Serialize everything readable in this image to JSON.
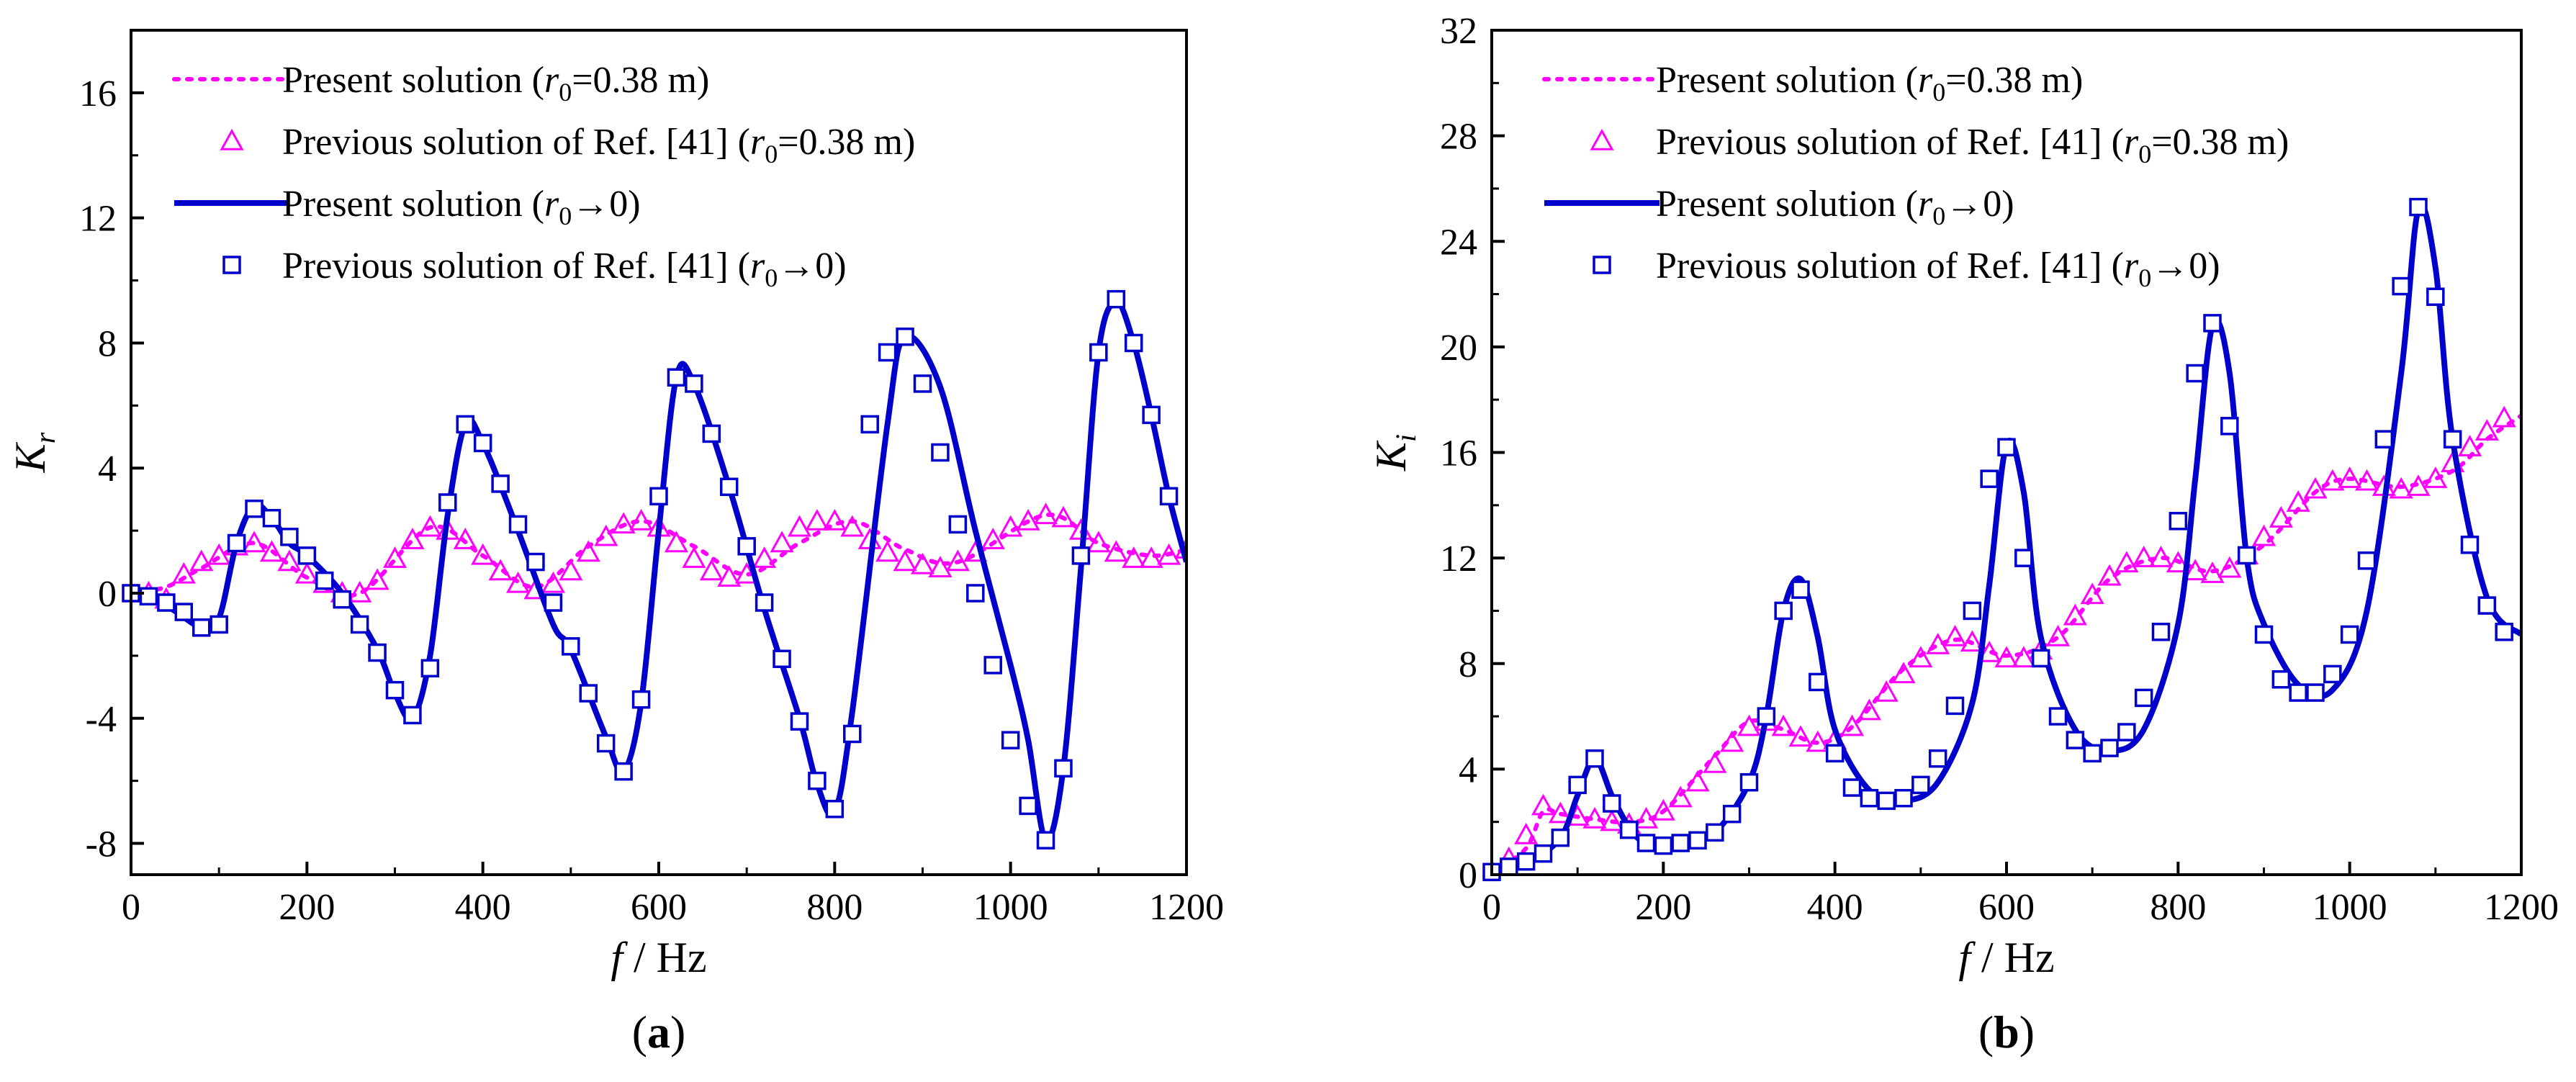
{
  "colors": {
    "present_038": "#ff00ff",
    "prev_038": "#ff00ff",
    "present_0": "#0000cc",
    "prev_0": "#0000cc"
  },
  "chart_data": [
    {
      "type": "line",
      "caption_letter": "a",
      "title": "",
      "xlabel": "f / Hz",
      "xlabel_var": "f",
      "xlabel_unit": " / Hz",
      "ylabel": "K_r",
      "ylabel_main": "K",
      "ylabel_sub": "r",
      "xlim": [
        0,
        1200
      ],
      "ylim": [
        -9,
        18
      ],
      "xticks": [
        0,
        200,
        400,
        600,
        800,
        1000,
        1200
      ],
      "yticks": [
        -8,
        -4,
        0,
        4,
        8,
        12,
        16
      ],
      "legend": [
        {
          "text": "Present solution (",
          "r": "r",
          "sub": "0",
          "rest": "=0.38 m)"
        },
        {
          "text": "Previous solution of Ref. [41]  (",
          "r": "r",
          "sub": "0",
          "rest": "=0.38 m)"
        },
        {
          "text": "Present solution (",
          "r": "r",
          "sub": "0",
          "rest": "→0)"
        },
        {
          "text": "Previous solution of Ref. [41]   (",
          "r": "r",
          "sub": "0",
          "rest": "→0)"
        }
      ],
      "series": [
        {
          "name": "Present solution (r0=0.38 m)",
          "style": "dotted",
          "color_key": "present_038",
          "x": [
            0,
            40,
            80,
            140,
            200,
            260,
            340,
            400,
            460,
            520,
            580,
            640,
            700,
            760,
            820,
            880,
            940,
            1040,
            1100,
            1160,
            1200
          ],
          "y": [
            0,
            0.2,
            0.8,
            1.6,
            0.5,
            0.0,
            2.1,
            1.2,
            0.2,
            1.5,
            2.3,
            1.5,
            0.6,
            1.6,
            2.3,
            1.4,
            1.0,
            2.5,
            1.6,
            1.2,
            1.4
          ]
        },
        {
          "name": "Previous solution of Ref. [41] (r0=0.38 m)",
          "style": "triangle",
          "color_key": "prev_038",
          "x": [
            0,
            20,
            40,
            60,
            80,
            100,
            120,
            140,
            160,
            180,
            200,
            220,
            240,
            260,
            280,
            300,
            320,
            340,
            360,
            380,
            400,
            420,
            440,
            460,
            480,
            500,
            520,
            540,
            560,
            580,
            600,
            620,
            640,
            660,
            680,
            700,
            720,
            740,
            760,
            780,
            800,
            820,
            840,
            860,
            880,
            900,
            920,
            940,
            960,
            980,
            1000,
            1020,
            1040,
            1060,
            1080,
            1100,
            1120,
            1140,
            1160,
            1180,
            1200
          ],
          "y": [
            0.0,
            0.0,
            -0.2,
            0.6,
            1.0,
            1.2,
            1.5,
            1.6,
            1.3,
            1.0,
            0.6,
            0.3,
            0.0,
            0.0,
            0.4,
            1.1,
            1.7,
            2.1,
            2.0,
            1.7,
            1.2,
            0.7,
            0.3,
            0.1,
            0.3,
            0.7,
            1.3,
            1.8,
            2.2,
            2.3,
            2.1,
            1.6,
            1.1,
            0.7,
            0.5,
            0.6,
            1.1,
            1.6,
            2.1,
            2.3,
            2.3,
            2.1,
            1.7,
            1.3,
            1.0,
            0.9,
            0.8,
            1.0,
            1.3,
            1.7,
            2.1,
            2.3,
            2.5,
            2.4,
            2.0,
            1.6,
            1.3,
            1.1,
            1.1,
            1.2,
            1.4
          ]
        },
        {
          "name": "Present solution (r0→0)",
          "style": "solid",
          "color_key": "present_0",
          "x": [
            0,
            40,
            80,
            100,
            120,
            140,
            160,
            180,
            200,
            240,
            280,
            300,
            320,
            340,
            360,
            380,
            400,
            440,
            480,
            500,
            540,
            560,
            580,
            600,
            620,
            640,
            680,
            720,
            760,
            780,
            800,
            820,
            860,
            880,
            920,
            960,
            1000,
            1020,
            1040,
            1060,
            1080,
            1100,
            1120,
            1140,
            1160,
            1180,
            1200
          ],
          "y": [
            0,
            -0.4,
            -1.1,
            -0.8,
            1.6,
            2.8,
            2.4,
            1.6,
            1.2,
            0.0,
            -1.8,
            -3.2,
            -4.0,
            -2.0,
            2.5,
            5.4,
            4.8,
            2.0,
            -1.0,
            -1.8,
            -4.6,
            -5.7,
            -3.5,
            2.0,
            6.9,
            6.7,
            3.4,
            -0.5,
            -4.0,
            -6.1,
            -7.0,
            -3.8,
            5.4,
            8.2,
            6.6,
            2.0,
            -2.3,
            -4.7,
            -7.9,
            -5.6,
            0.8,
            7.7,
            9.3,
            8.0,
            5.7,
            3.1,
            1.0
          ]
        },
        {
          "name": "Previous solution of Ref. [41] (r0→0)",
          "style": "square",
          "color_key": "prev_0",
          "x": [
            0,
            20,
            40,
            60,
            80,
            100,
            120,
            140,
            160,
            180,
            200,
            220,
            240,
            260,
            280,
            300,
            320,
            340,
            360,
            380,
            400,
            420,
            440,
            460,
            480,
            500,
            520,
            540,
            560,
            580,
            600,
            620,
            640,
            660,
            680,
            700,
            720,
            740,
            760,
            780,
            800,
            820,
            840,
            860,
            880,
            900,
            920,
            940,
            960,
            980,
            1000,
            1020,
            1040,
            1060,
            1080,
            1100,
            1120,
            1140,
            1160,
            1180
          ],
          "y": [
            0.0,
            -0.1,
            -0.3,
            -0.6,
            -1.1,
            -1.0,
            1.6,
            2.7,
            2.4,
            1.8,
            1.2,
            0.4,
            -0.2,
            -1.0,
            -1.9,
            -3.1,
            -3.9,
            -2.4,
            2.9,
            5.4,
            4.8,
            3.5,
            2.2,
            1.0,
            -0.3,
            -1.7,
            -3.2,
            -4.8,
            -5.7,
            -3.4,
            3.1,
            6.9,
            6.7,
            5.1,
            3.4,
            1.5,
            -0.3,
            -2.1,
            -4.1,
            -6.0,
            -6.9,
            -4.5,
            5.4,
            7.7,
            8.2,
            6.7,
            4.5,
            2.2,
            0.0,
            -2.3,
            -4.7,
            -6.8,
            -7.9,
            -5.6,
            1.2,
            7.7,
            9.4,
            8.0,
            5.7,
            3.1
          ]
        }
      ]
    },
    {
      "type": "line",
      "caption_letter": "b",
      "title": "",
      "xlabel": "f / Hz",
      "xlabel_var": "f",
      "xlabel_unit": " / Hz",
      "ylabel": "K_i",
      "ylabel_main": "K",
      "ylabel_sub": "i",
      "xlim": [
        0,
        1200
      ],
      "ylim": [
        0,
        32
      ],
      "xticks": [
        0,
        200,
        400,
        600,
        800,
        1000,
        1200
      ],
      "yticks": [
        0,
        4,
        8,
        12,
        16,
        20,
        24,
        28,
        32
      ],
      "legend": [
        {
          "text": "Present solution (",
          "r": "r",
          "sub": "0",
          "rest": "=0.38 m)"
        },
        {
          "text": "Previous solution of Ref. [41] (",
          "r": "r",
          "sub": "0",
          "rest": "=0.38 m)"
        },
        {
          "text": "Present solution (",
          "r": "r",
          "sub": "0",
          "rest": "→0)"
        },
        {
          "text": "Previous solution of Ref. [41] (",
          "r": "r",
          "sub": "0",
          "rest": "→0)"
        }
      ],
      "series": [
        {
          "name": "Present solution (r0=0.38 m)",
          "style": "dotted",
          "color_key": "present_038",
          "x": [
            0,
            40,
            60,
            80,
            120,
            160,
            200,
            260,
            300,
            340,
            380,
            420,
            480,
            540,
            600,
            660,
            720,
            780,
            840,
            900,
            960,
            1000,
            1060,
            1120,
            1160,
            1200
          ],
          "y": [
            0,
            1.0,
            2.4,
            2.3,
            2.1,
            2.0,
            2.4,
            4.5,
            5.8,
            5.5,
            5.0,
            5.6,
            7.8,
            8.9,
            8.3,
            9.0,
            11.2,
            12.0,
            11.5,
            12.5,
            14.5,
            15.0,
            14.7,
            15.3,
            16.5,
            17.4
          ]
        },
        {
          "name": "Previous solution of Ref. [41] (r0=0.38 m)",
          "style": "triangle",
          "color_key": "prev_038",
          "x": [
            0,
            20,
            40,
            60,
            80,
            100,
            120,
            140,
            160,
            180,
            200,
            220,
            240,
            260,
            280,
            300,
            320,
            340,
            360,
            380,
            400,
            420,
            440,
            460,
            480,
            500,
            520,
            540,
            560,
            580,
            600,
            620,
            640,
            660,
            680,
            700,
            720,
            740,
            760,
            780,
            800,
            820,
            840,
            860,
            880,
            900,
            920,
            940,
            960,
            980,
            1000,
            1020,
            1040,
            1060,
            1080,
            1100,
            1120,
            1140,
            1160,
            1180
          ],
          "y": [
            0.1,
            0.6,
            1.5,
            2.6,
            2.3,
            2.2,
            2.1,
            2.0,
            1.9,
            2.1,
            2.4,
            2.9,
            3.5,
            4.2,
            5.0,
            5.6,
            5.8,
            5.6,
            5.2,
            5.0,
            5.1,
            5.6,
            6.2,
            6.9,
            7.6,
            8.2,
            8.7,
            9.0,
            8.8,
            8.4,
            8.2,
            8.2,
            8.5,
            9.0,
            9.8,
            10.6,
            11.3,
            11.8,
            12.0,
            12.0,
            11.8,
            11.5,
            11.4,
            11.6,
            12.1,
            12.8,
            13.5,
            14.1,
            14.6,
            14.9,
            15.0,
            14.9,
            14.7,
            14.6,
            14.7,
            15.0,
            15.6,
            16.2,
            16.8,
            17.3
          ]
        },
        {
          "name": "Present solution (r0→0)",
          "style": "solid",
          "color_key": "present_0",
          "x": [
            0,
            40,
            80,
            100,
            120,
            140,
            160,
            180,
            220,
            260,
            300,
            320,
            340,
            360,
            380,
            400,
            440,
            480,
            520,
            560,
            580,
            600,
            620,
            640,
            680,
            720,
            760,
            800,
            820,
            840,
            860,
            880,
            900,
            940,
            980,
            1020,
            1060,
            1080,
            1100,
            1120,
            1160,
            1200
          ],
          "y": [
            0.2,
            0.4,
            1.4,
            3.0,
            4.4,
            3.0,
            1.8,
            1.2,
            1.1,
            1.6,
            3.5,
            6.0,
            10.0,
            11.2,
            9.0,
            5.5,
            3.2,
            2.8,
            3.5,
            6.5,
            11.0,
            16.3,
            14.5,
            9.0,
            5.5,
            4.7,
            5.5,
            9.5,
            15.0,
            20.8,
            19.0,
            12.0,
            9.5,
            7.2,
            7.0,
            10.0,
            19.0,
            25.2,
            23.0,
            16.5,
            10.5,
            9.1
          ]
        },
        {
          "name": "Previous solution of Ref. [41] (r0→0)",
          "style": "square",
          "color_key": "prev_0",
          "x": [
            0,
            20,
            40,
            60,
            80,
            100,
            120,
            140,
            160,
            180,
            200,
            220,
            240,
            260,
            280,
            300,
            320,
            340,
            360,
            380,
            400,
            420,
            440,
            460,
            480,
            500,
            520,
            540,
            560,
            580,
            600,
            620,
            640,
            660,
            680,
            700,
            720,
            740,
            760,
            780,
            800,
            820,
            840,
            860,
            880,
            900,
            920,
            940,
            960,
            980,
            1000,
            1020,
            1040,
            1060,
            1080,
            1100,
            1120,
            1140,
            1160,
            1180
          ],
          "y": [
            0.1,
            0.3,
            0.5,
            0.8,
            1.4,
            3.4,
            4.4,
            2.7,
            1.7,
            1.2,
            1.1,
            1.2,
            1.3,
            1.6,
            2.3,
            3.5,
            6.0,
            10.0,
            10.8,
            7.3,
            4.6,
            3.3,
            2.9,
            2.8,
            2.9,
            3.4,
            4.4,
            6.4,
            10.0,
            15.0,
            16.2,
            12.0,
            8.2,
            6.0,
            5.1,
            4.6,
            4.8,
            5.4,
            6.7,
            9.2,
            13.4,
            19.0,
            20.9,
            17.0,
            12.1,
            9.1,
            7.4,
            6.9,
            6.9,
            7.6,
            9.1,
            11.9,
            16.5,
            22.3,
            25.3,
            21.9,
            16.5,
            12.5,
            10.2,
            9.2
          ]
        }
      ]
    }
  ]
}
